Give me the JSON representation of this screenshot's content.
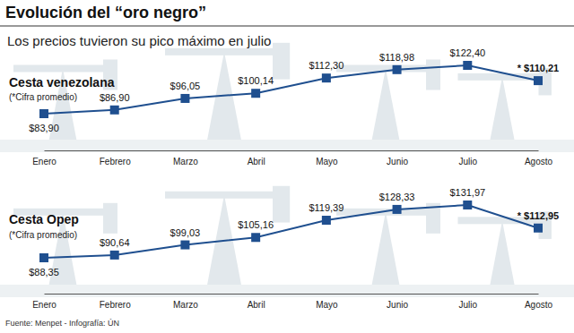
{
  "header": {
    "title": "Evolución del “oro negro”",
    "subtitle": "Los precios tuvieron su pico máximo en julio"
  },
  "chart_data": [
    {
      "type": "line",
      "title": "Cesta venezolana",
      "subtitle": "(*Cifra promedio)",
      "categories": [
        "Enero",
        "Febrero",
        "Marzo",
        "Abril",
        "Mayo",
        "Junio",
        "Julio",
        "Agosto"
      ],
      "values": [
        83.9,
        86.9,
        96.05,
        100.14,
        112.3,
        118.98,
        122.4,
        110.21
      ],
      "value_labels": [
        "$83,90",
        "$86,90",
        "$96,05",
        "$100,14",
        "$112,30",
        "$118,98",
        "$122,40",
        "* $110,21"
      ],
      "color": "#1f4f8f",
      "marker": "square",
      "line_style": "solid",
      "data_labels": true,
      "tick_labels": "x",
      "grid": false
    },
    {
      "type": "line",
      "title": "Cesta Opep",
      "subtitle": "(*Cifra promedio)",
      "categories": [
        "Enero",
        "Febrero",
        "Marzo",
        "Abril",
        "Mayo",
        "Junio",
        "Julio",
        "Agosto"
      ],
      "values": [
        88.35,
        90.64,
        99.03,
        105.16,
        119.39,
        128.33,
        131.97,
        112.95
      ],
      "value_labels": [
        "$88,35",
        "$90,64",
        "$99,03",
        "$105,16",
        "$119,39",
        "$128,33",
        "$131,97",
        "* $112,95"
      ],
      "color": "#1f4f8f",
      "marker": "square",
      "line_style": "solid",
      "data_labels": true,
      "tick_labels": "x",
      "grid": false
    }
  ],
  "footer": {
    "source": "Fuente: Menpet - Infografía: ÚN"
  }
}
